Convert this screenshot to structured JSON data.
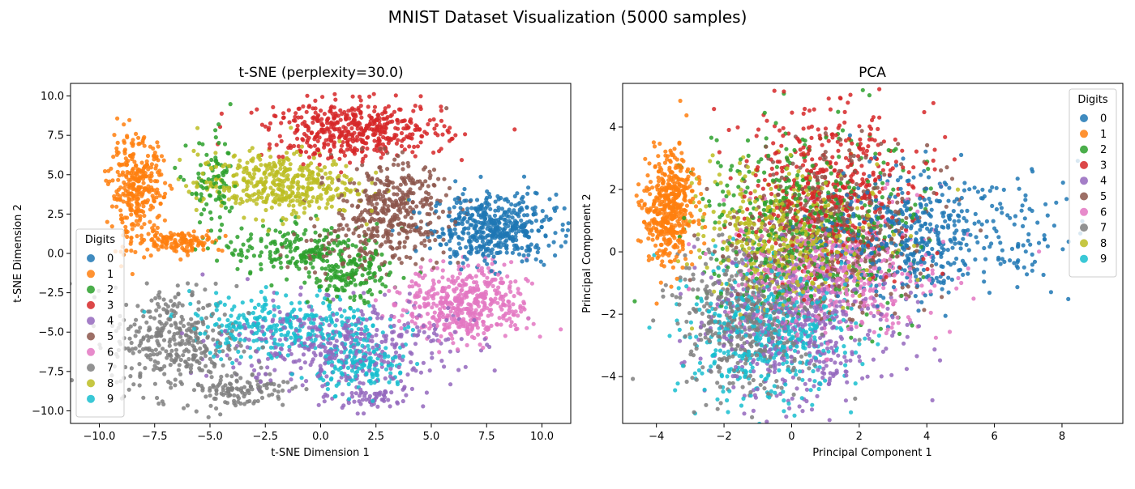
{
  "figure": {
    "title": "MNIST Dataset Visualization (5000 samples)"
  },
  "chart_data": [
    {
      "type": "scatter",
      "title": "t-SNE (perplexity=30.0)",
      "xlabel": "t-SNE Dimension 1",
      "ylabel": "t-SNE Dimension 2",
      "xlim": [
        -11.3,
        11.3
      ],
      "ylim": [
        -10.8,
        10.8
      ],
      "xticks": [
        -10.0,
        -7.5,
        -5.0,
        -2.5,
        0.0,
        2.5,
        5.0,
        7.5,
        10.0
      ],
      "xtick_labels": [
        "−10.0",
        "−7.5",
        "−5.0",
        "−2.5",
        "0.0",
        "2.5",
        "5.0",
        "7.5",
        "10.0"
      ],
      "yticks": [
        -10.0,
        -7.5,
        -5.0,
        -2.5,
        0.0,
        2.5,
        5.0,
        7.5,
        10.0
      ],
      "ytick_labels": [
        "−10.0",
        "−7.5",
        "−5.0",
        "−2.5",
        "0.0",
        "2.5",
        "5.0",
        "7.5",
        "10.0"
      ],
      "grid": false,
      "legend": {
        "title": "Digits",
        "placement": "center-left"
      },
      "series": [
        {
          "name": "0",
          "color": "#1f77b4",
          "clusters": [
            {
              "cx": 7.8,
              "cy": 1.6,
              "sx": 1.4,
              "sy": 1.1,
              "n": 480
            }
          ]
        },
        {
          "name": "1",
          "color": "#ff7f0e",
          "clusters": [
            {
              "cx": -8.3,
              "cy": 4.0,
              "sx": 0.6,
              "sy": 1.6,
              "n": 320
            },
            {
              "cx": -6.4,
              "cy": 0.8,
              "sx": 1.0,
              "sy": 0.35,
              "n": 130
            }
          ]
        },
        {
          "name": "2",
          "color": "#2ca02c",
          "clusters": [
            {
              "cx": -0.8,
              "cy": 0.2,
              "sx": 1.8,
              "sy": 0.8,
              "n": 200
            },
            {
              "cx": 1.3,
              "cy": -1.5,
              "sx": 0.9,
              "sy": 0.8,
              "n": 140
            },
            {
              "cx": -4.8,
              "cy": 4.2,
              "sx": 0.6,
              "sy": 1.6,
              "n": 90
            }
          ]
        },
        {
          "name": "3",
          "color": "#d62728",
          "clusters": [
            {
              "cx": 1.6,
              "cy": 7.8,
              "sx": 2.0,
              "sy": 0.9,
              "n": 470
            }
          ]
        },
        {
          "name": "4",
          "color": "#9467bd",
          "clusters": [
            {
              "cx": 0.8,
              "cy": -5.8,
              "sx": 2.6,
              "sy": 1.4,
              "n": 420
            },
            {
              "cx": 2.3,
              "cy": -9.2,
              "sx": 0.9,
              "sy": 0.4,
              "n": 60
            }
          ]
        },
        {
          "name": "5",
          "color": "#8c564b",
          "clusters": [
            {
              "cx": 3.2,
              "cy": 2.8,
              "sx": 1.3,
              "sy": 1.5,
              "n": 380
            },
            {
              "cx": 0.9,
              "cy": 0.2,
              "sx": 1.2,
              "sy": 0.9,
              "n": 70
            }
          ]
        },
        {
          "name": "6",
          "color": "#e377c2",
          "clusters": [
            {
              "cx": 6.6,
              "cy": -3.2,
              "sx": 1.4,
              "sy": 1.2,
              "n": 480
            }
          ]
        },
        {
          "name": "7",
          "color": "#7f7f7f",
          "clusters": [
            {
              "cx": -6.6,
              "cy": -5.5,
              "sx": 1.4,
              "sy": 1.7,
              "n": 360
            },
            {
              "cx": -3.8,
              "cy": -8.6,
              "sx": 1.2,
              "sy": 0.6,
              "n": 120
            }
          ]
        },
        {
          "name": "8",
          "color": "#bcbd22",
          "clusters": [
            {
              "cx": -2.0,
              "cy": 4.4,
              "sx": 1.8,
              "sy": 1.0,
              "n": 430
            }
          ]
        },
        {
          "name": "9",
          "color": "#17becf",
          "clusters": [
            {
              "cx": -1.5,
              "cy": -4.6,
              "sx": 2.2,
              "sy": 1.0,
              "n": 320
            },
            {
              "cx": 2.0,
              "cy": -7.2,
              "sx": 1.0,
              "sy": 0.8,
              "n": 150
            }
          ]
        }
      ]
    },
    {
      "type": "scatter",
      "title": "PCA",
      "xlabel": "Principal Component 1",
      "ylabel": "Principal Component 2",
      "xlim": [
        -5.0,
        9.8
      ],
      "ylim": [
        -5.5,
        5.4
      ],
      "xticks": [
        -4,
        -2,
        0,
        2,
        4,
        6,
        8
      ],
      "xtick_labels": [
        "−4",
        "−2",
        "0",
        "2",
        "4",
        "6",
        "8"
      ],
      "yticks": [
        -4,
        -2,
        0,
        2,
        4
      ],
      "ytick_labels": [
        "−4",
        "−2",
        "0",
        "2",
        "4"
      ],
      "grid": false,
      "legend": {
        "title": "Digits",
        "placement": "upper-right"
      },
      "series": [
        {
          "name": "0",
          "color": "#1f77b4",
          "clusters": [
            {
              "cx": 3.6,
              "cy": 0.6,
              "sx": 1.4,
              "sy": 1.0,
              "n": 450
            },
            {
              "cx": 6.8,
              "cy": 0.4,
              "sx": 1.2,
              "sy": 1.0,
              "n": 60
            }
          ]
        },
        {
          "name": "1",
          "color": "#ff7f0e",
          "clusters": [
            {
              "cx": -3.6,
              "cy": 1.4,
              "sx": 0.35,
              "sy": 0.9,
              "n": 450
            }
          ]
        },
        {
          "name": "2",
          "color": "#2ca02c",
          "clusters": [
            {
              "cx": 0.3,
              "cy": 1.0,
              "sx": 1.6,
              "sy": 1.5,
              "n": 480
            }
          ]
        },
        {
          "name": "3",
          "color": "#d62728",
          "clusters": [
            {
              "cx": 1.2,
              "cy": 2.0,
              "sx": 1.2,
              "sy": 1.3,
              "n": 470
            }
          ]
        },
        {
          "name": "4",
          "color": "#9467bd",
          "clusters": [
            {
              "cx": 0.3,
              "cy": -2.4,
              "sx": 1.4,
              "sy": 1.3,
              "n": 470
            }
          ]
        },
        {
          "name": "5",
          "color": "#8c564b",
          "clusters": [
            {
              "cx": 1.2,
              "cy": 0.6,
              "sx": 1.4,
              "sy": 1.3,
              "n": 430
            }
          ]
        },
        {
          "name": "6",
          "color": "#e377c2",
          "clusters": [
            {
              "cx": 1.2,
              "cy": -0.8,
              "sx": 1.6,
              "sy": 1.0,
              "n": 470
            }
          ]
        },
        {
          "name": "7",
          "color": "#7f7f7f",
          "clusters": [
            {
              "cx": -1.3,
              "cy": -2.2,
              "sx": 1.0,
              "sy": 1.1,
              "n": 470
            }
          ]
        },
        {
          "name": "8",
          "color": "#bcbd22",
          "clusters": [
            {
              "cx": 0.0,
              "cy": 0.6,
              "sx": 1.3,
              "sy": 1.1,
              "n": 450
            }
          ]
        },
        {
          "name": "9",
          "color": "#17becf",
          "clusters": [
            {
              "cx": -0.8,
              "cy": -2.6,
              "sx": 1.2,
              "sy": 1.0,
              "n": 470
            }
          ]
        }
      ]
    }
  ]
}
